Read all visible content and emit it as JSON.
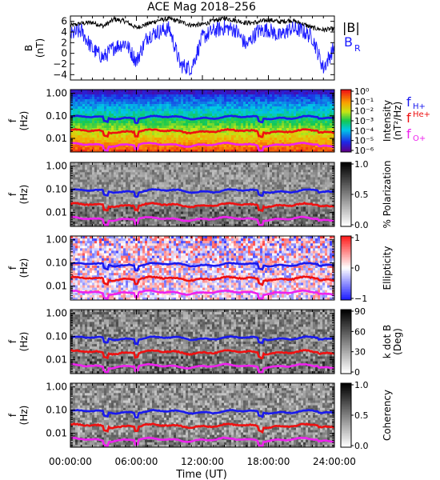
{
  "title": "ACE Mag 2018–256",
  "colors": {
    "btotal": "#000000",
    "br": "#1a1aff",
    "fH": "#1a1aee",
    "fHe": "#ee1111",
    "fO": "#ee22ee"
  },
  "chart_data": [
    {
      "type": "line",
      "ylabel": "B\n(nT)",
      "ylim": [
        -5,
        7
      ],
      "yticks": [
        "6",
        "4",
        "2",
        "0",
        "−2",
        "−4"
      ],
      "ytick_values": [
        6,
        4,
        2,
        0,
        -2,
        -4
      ],
      "series": [
        {
          "name": "|B|",
          "values": [
            5.2,
            5.6,
            5.8,
            5.1,
            6.4,
            6.0,
            4.8,
            5.5,
            6.2,
            6.5,
            5.9,
            5.3,
            5.4,
            6.1,
            6.6,
            6.2,
            5.7,
            5.8,
            6.3,
            5.9,
            6.2,
            5.6,
            4.8,
            4.4,
            4.6
          ]
        },
        {
          "name": "B_R",
          "values": [
            3.5,
            4.2,
            0.8,
            -0.8,
            1.2,
            2.0,
            -1.5,
            3.2,
            4.1,
            4.6,
            -2.2,
            -2.8,
            3.0,
            4.2,
            4.8,
            4.4,
            1.5,
            4.1,
            4.5,
            3.2,
            4.6,
            4.3,
            3.0,
            -2.8,
            1.2
          ]
        }
      ],
      "legend": [
        "|B|",
        "B",
        "R"
      ]
    },
    {
      "type": "heatmap",
      "ylabel": "f\n(Hz)",
      "yticks": [
        "1.00",
        "0.10",
        "0.01"
      ],
      "colorbar_label": "Intensity\n(nT²/Hz)",
      "colorbar_ticks": [
        "10⁰",
        "10⁻¹",
        "10⁻²",
        "10⁻³",
        "10⁻⁴",
        "10⁻⁵",
        "10⁻⁶"
      ],
      "legend": [
        "f",
        "H+",
        "f",
        "He+",
        "f",
        "O+"
      ]
    },
    {
      "type": "heatmap",
      "ylabel": "f\n(Hz)",
      "yticks": [
        "1.00",
        "0.10",
        "0.01"
      ],
      "colorbar_label": "% Polarization",
      "colorbar_ticks": [
        "1.0",
        "0.5",
        "0.0"
      ]
    },
    {
      "type": "heatmap",
      "ylabel": "f\n(Hz)",
      "yticks": [
        "1.00",
        "0.10",
        "0.01"
      ],
      "colorbar_label": "Ellipticity",
      "colorbar_ticks": [
        "1",
        "0",
        "−1"
      ]
    },
    {
      "type": "heatmap",
      "ylabel": "f\n(Hz)",
      "yticks": [
        "1.00",
        "0.10",
        "0.01"
      ],
      "colorbar_label": "k dot B\n(Deg)",
      "colorbar_ticks": [
        "90",
        "60",
        "30",
        "0"
      ]
    },
    {
      "type": "heatmap",
      "ylabel": "f\n(Hz)",
      "yticks": [
        "1.00",
        "0.10",
        "0.01"
      ],
      "colorbar_label": "Coherency",
      "colorbar_ticks": [
        "1.0",
        "0.5",
        "0.0"
      ]
    }
  ],
  "x_axis": {
    "label": "Time (UT)",
    "ticks": [
      "00:00:00",
      "06:00:00",
      "12:00:00",
      "18:00:00",
      "24:00:00"
    ],
    "tick_hours": [
      0,
      6,
      12,
      18,
      24
    ]
  },
  "gyro_lines": {
    "fH": 0.085,
    "fHe": 0.021,
    "fO": 0.0053
  }
}
